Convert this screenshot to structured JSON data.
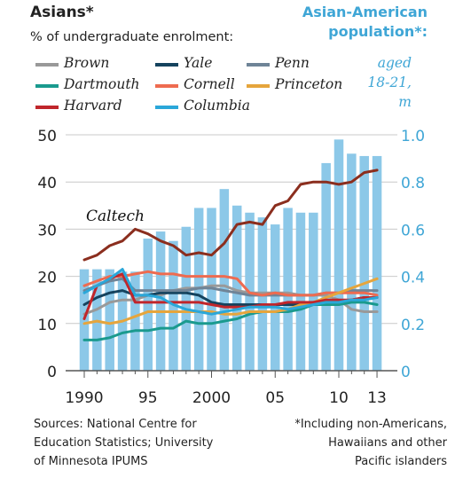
{
  "header": {
    "title": "Asians*",
    "subtitle": "% of undergraduate enrolment:",
    "right_title_line1": "Asian-American",
    "right_title_line2": "population*:",
    "bar_note_line1": "aged",
    "bar_note_line2": "18-21,",
    "bar_note_line3": "m"
  },
  "footer": {
    "source": "Sources: National Centre for\nEducation Statistics; University\nof Minnesota IPUMS",
    "footnote": "*Including non-Americans,\nHawaiians and other\nPacific islanders"
  },
  "chart_data": {
    "type": "bar+line",
    "title": "Asians*",
    "subtitle": "% of undergraduate enrolment:",
    "annotations": [
      "Caltech"
    ],
    "x_tick_labels": [
      "1990",
      "95",
      "2000",
      "05",
      "10",
      "13"
    ],
    "x": [
      1990,
      1991,
      1992,
      1993,
      1994,
      1995,
      1996,
      1997,
      1998,
      1999,
      2000,
      2001,
      2002,
      2003,
      2004,
      2005,
      2006,
      2007,
      2008,
      2009,
      2010,
      2011,
      2012,
      2013
    ],
    "left_axis": {
      "ticks": [
        0,
        10,
        20,
        30,
        40,
        50
      ],
      "ylim": [
        0,
        50
      ],
      "label": "% of undergraduate enrolment"
    },
    "right_axis": {
      "ticks": [
        "0",
        "0.2",
        "0.4",
        "0.6",
        "0.8",
        "1.0"
      ],
      "ylim": [
        0,
        1.0
      ],
      "label": "Asian-American population*: aged 18-21, m"
    },
    "bars": {
      "name": "Asian-American population aged 18-21, m",
      "color": "#8cc8e8",
      "values": [
        0.43,
        0.43,
        0.43,
        0.42,
        0.42,
        0.56,
        0.59,
        0.55,
        0.61,
        0.69,
        0.69,
        0.77,
        0.7,
        0.67,
        0.65,
        0.62,
        0.69,
        0.67,
        0.67,
        0.88,
        0.98,
        0.92,
        0.91,
        0.91
      ]
    },
    "series": [
      {
        "name": "Caltech",
        "color": "#8b2e1e",
        "values": [
          23.5,
          24.5,
          26.5,
          27.5,
          30.0,
          29.0,
          27.5,
          26.5,
          24.5,
          25.0,
          24.5,
          27.0,
          31.0,
          31.5,
          31.0,
          35.0,
          36.0,
          39.5,
          40.0,
          40.0,
          39.5,
          40.0,
          42.0,
          42.5
        ]
      },
      {
        "name": "Brown",
        "color": "#999999",
        "values": [
          12,
          13,
          14.5,
          15,
          15,
          16,
          16,
          17,
          17.5,
          17.5,
          18,
          18,
          17,
          16.5,
          16.5,
          16.5,
          16.5,
          16,
          16,
          16,
          15,
          13,
          12.5,
          12.5
        ]
      },
      {
        "name": "Yale",
        "color": "#15435e",
        "values": [
          14,
          15.5,
          16.5,
          17,
          16,
          16,
          16.5,
          16.5,
          16.5,
          16,
          14.5,
          14,
          14,
          14,
          14,
          14,
          14,
          14,
          14.5,
          14.5,
          14.5,
          15,
          15.5,
          15.5
        ]
      },
      {
        "name": "Penn",
        "color": "#6f8497",
        "values": [
          17,
          18,
          19,
          19.5,
          17,
          17,
          17,
          17,
          17,
          17.5,
          17.5,
          17,
          16.5,
          16,
          16,
          16,
          16,
          16,
          16,
          16.5,
          16.5,
          17,
          17,
          17
        ]
      },
      {
        "name": "Dartmouth",
        "color": "#1a9a8e",
        "values": [
          6.5,
          6.5,
          7,
          8,
          8.5,
          8.5,
          9,
          9,
          10.5,
          10,
          10,
          10.5,
          11,
          12,
          12.5,
          12.5,
          12.5,
          13,
          14,
          14,
          14,
          14.5,
          14.5,
          14
        ]
      },
      {
        "name": "Cornell",
        "color": "#ee6b50",
        "values": [
          18,
          19,
          20,
          20,
          20.5,
          21,
          20.5,
          20.5,
          20,
          20,
          20,
          20,
          19.5,
          16.5,
          16,
          16.5,
          16,
          16,
          16,
          16.5,
          16.5,
          16.5,
          16.5,
          16
        ]
      },
      {
        "name": "Princeton",
        "color": "#e6a53c",
        "values": [
          10,
          10.5,
          10,
          10.5,
          11.5,
          12.5,
          12.5,
          12.5,
          12.5,
          12.5,
          12.5,
          12,
          12,
          12.5,
          12.5,
          12.5,
          13,
          14,
          14.5,
          15.5,
          16.5,
          17.5,
          18.5,
          19.5
        ]
      },
      {
        "name": "Harvard",
        "color": "#c0262b",
        "values": [
          11,
          18,
          19.5,
          20.5,
          14.5,
          14.5,
          14.5,
          14.5,
          14.5,
          14.5,
          14,
          13.5,
          13.5,
          13.5,
          14,
          14,
          14.5,
          14.5,
          14.5,
          15,
          15,
          15,
          15.5,
          15.5
        ]
      },
      {
        "name": "Columbia",
        "color": "#2aa7d9",
        "values": [
          16.5,
          18,
          19.5,
          21.5,
          16,
          16,
          15.5,
          14,
          13,
          12.5,
          12,
          12.5,
          13,
          13.5,
          13.5,
          13.5,
          13,
          13.5,
          14,
          14.5,
          14.5,
          15,
          15,
          15.5
        ]
      }
    ],
    "legend_placement": "top-left, three columns",
    "grid": true
  }
}
